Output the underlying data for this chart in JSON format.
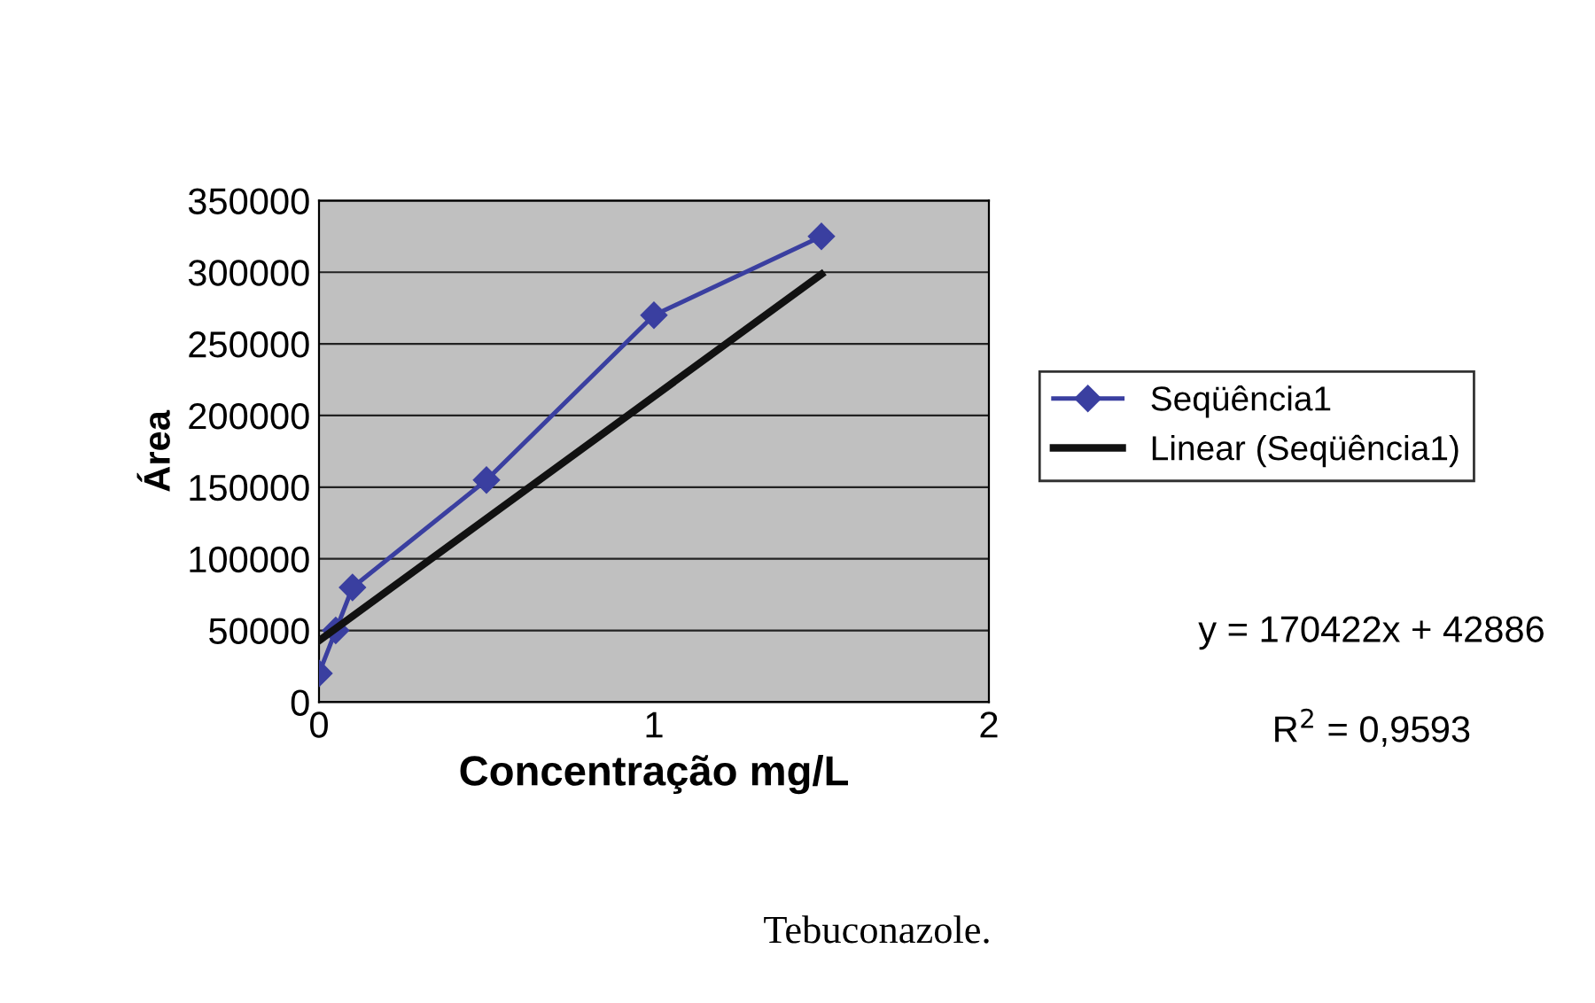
{
  "chart_data": {
    "type": "line",
    "xlabel": "Concentração mg/L",
    "ylabel": "Área",
    "xlim": [
      0,
      2
    ],
    "xticks": [
      0,
      1,
      2
    ],
    "ylim": [
      0,
      350000
    ],
    "yticks": [
      0,
      50000,
      100000,
      150000,
      200000,
      250000,
      300000,
      350000
    ],
    "grid": "y",
    "legend": "right",
    "marker": "diamond",
    "series": [
      {
        "name": "Seqüência1",
        "color": "#3a3fa0",
        "x": [
          0,
          0.05,
          0.1,
          0.5,
          1,
          1.5
        ],
        "values": [
          20000,
          50000,
          80000,
          155000,
          270000,
          325000
        ]
      },
      {
        "name": "Linear (Seqüência1)",
        "color": "#111111",
        "type": "line",
        "marker": "none",
        "x": [
          0,
          1.5
        ],
        "values": [
          42886,
          298519
        ]
      }
    ],
    "annotations": [
      "y = 170422x + 42886",
      "R$^{2}$ = 0,9593",
      "Tebuconazole."
    ]
  }
}
